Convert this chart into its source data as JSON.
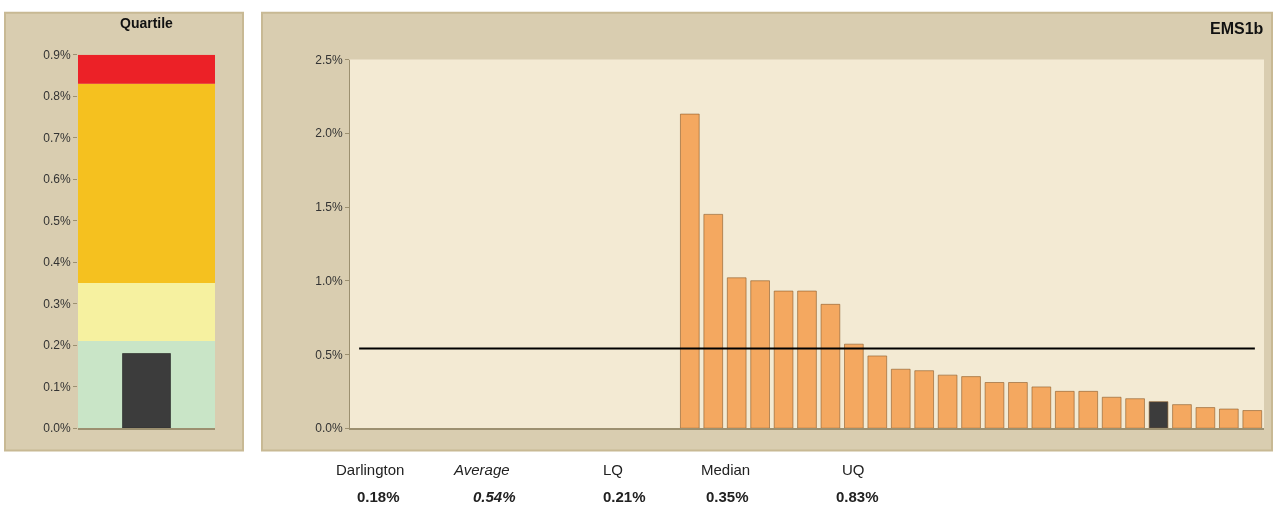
{
  "chart_data": [
    {
      "type": "bar",
      "title": "Quartile",
      "categories": [
        null
      ],
      "values": [
        0.18
      ],
      "colors": [
        "#3c3c3c"
      ],
      "ylim": [
        0,
        0.9
      ],
      "yticks": [
        {
          "value": 0,
          "label": "0.0%"
        },
        {
          "value": 0.1,
          "label": "0.1%"
        },
        {
          "value": 0.2,
          "label": "0.2%"
        },
        {
          "value": 0.3,
          "label": "0.3%"
        },
        {
          "value": 0.4,
          "label": "0.4%"
        },
        {
          "value": 0.5,
          "label": "0.5%"
        },
        {
          "value": 0.6,
          "label": "0.6%"
        },
        {
          "value": 0.7,
          "label": "0.7%"
        },
        {
          "value": 0.8,
          "label": "0.8%"
        },
        {
          "value": 0.9,
          "label": "0.9%"
        }
      ],
      "bands": [
        {
          "axis": "y",
          "from": 0,
          "to": 0.21,
          "label": null,
          "color": "#c9e5c7"
        },
        {
          "axis": "y",
          "from": 0.21,
          "to": 0.35,
          "label": null,
          "color": "#f6f1a0"
        },
        {
          "axis": "y",
          "from": 0.35,
          "to": 0.83,
          "label": null,
          "color": "#f5c11f"
        },
        {
          "axis": "y",
          "from": 0.83,
          "to": 0.9,
          "label": null,
          "color": "#ec2127"
        }
      ],
      "tick_labels": "y",
      "grid": false,
      "legend": false
    },
    {
      "type": "bar",
      "title": "EMS1b",
      "categories": [
        null,
        null,
        null,
        null,
        null,
        null,
        null,
        null,
        null,
        null,
        null,
        null,
        null,
        null,
        null,
        null,
        null,
        null,
        null,
        null,
        null,
        null,
        null,
        null,
        null,
        null,
        null,
        null,
        null,
        null,
        null,
        null,
        null,
        null,
        null,
        null,
        null,
        null,
        null
      ],
      "values": [
        null,
        null,
        null,
        null,
        null,
        null,
        null,
        null,
        null,
        null,
        null,
        null,
        null,
        null,
        2.13,
        1.45,
        1.02,
        1.0,
        0.93,
        0.93,
        0.84,
        0.57,
        0.49,
        0.4,
        0.39,
        0.36,
        0.35,
        0.31,
        0.31,
        0.28,
        0.25,
        0.25,
        0.21,
        0.2,
        0.18,
        0.16,
        0.14,
        0.13,
        0.12
      ],
      "colors": [
        "#f4a860",
        "#f4a860",
        "#f4a860",
        "#f4a860",
        "#f4a860",
        "#f4a860",
        "#f4a860",
        "#f4a860",
        "#f4a860",
        "#f4a860",
        "#f4a860",
        "#f4a860",
        "#f4a860",
        "#f4a860",
        "#f4a860",
        "#f4a860",
        "#f4a860",
        "#f4a860",
        "#f4a860",
        "#f4a860",
        "#f4a860",
        "#f4a860",
        "#f4a860",
        "#f4a860",
        "#f4a860",
        "#f4a860",
        "#f4a860",
        "#f4a860",
        "#f4a860",
        "#f4a860",
        "#f4a860",
        "#f4a860",
        "#f4a860",
        "#f4a860",
        "#3c3c3c",
        "#f4a860",
        "#f4a860",
        "#f4a860",
        "#f4a860"
      ],
      "ylim": [
        0,
        2.5
      ],
      "yticks": [
        {
          "value": 0,
          "label": "0.0%"
        },
        {
          "value": 0.5,
          "label": "0.5%"
        },
        {
          "value": 1.0,
          "label": "1.0%"
        },
        {
          "value": 1.5,
          "label": "1.5%"
        },
        {
          "value": 2.0,
          "label": "2.0%"
        },
        {
          "value": 2.5,
          "label": "2.5%"
        }
      ],
      "ref_lines": [
        {
          "axis": "y",
          "value": 0.54,
          "label": null,
          "color": "#000000"
        }
      ],
      "annotations": [
        "Darlington",
        "0.18%",
        "Average",
        "0.54%",
        "LQ",
        "0.21%",
        "Median",
        "0.35%",
        "UQ",
        "0.83%"
      ],
      "tick_labels": "y",
      "grid": false,
      "legend": false
    }
  ]
}
